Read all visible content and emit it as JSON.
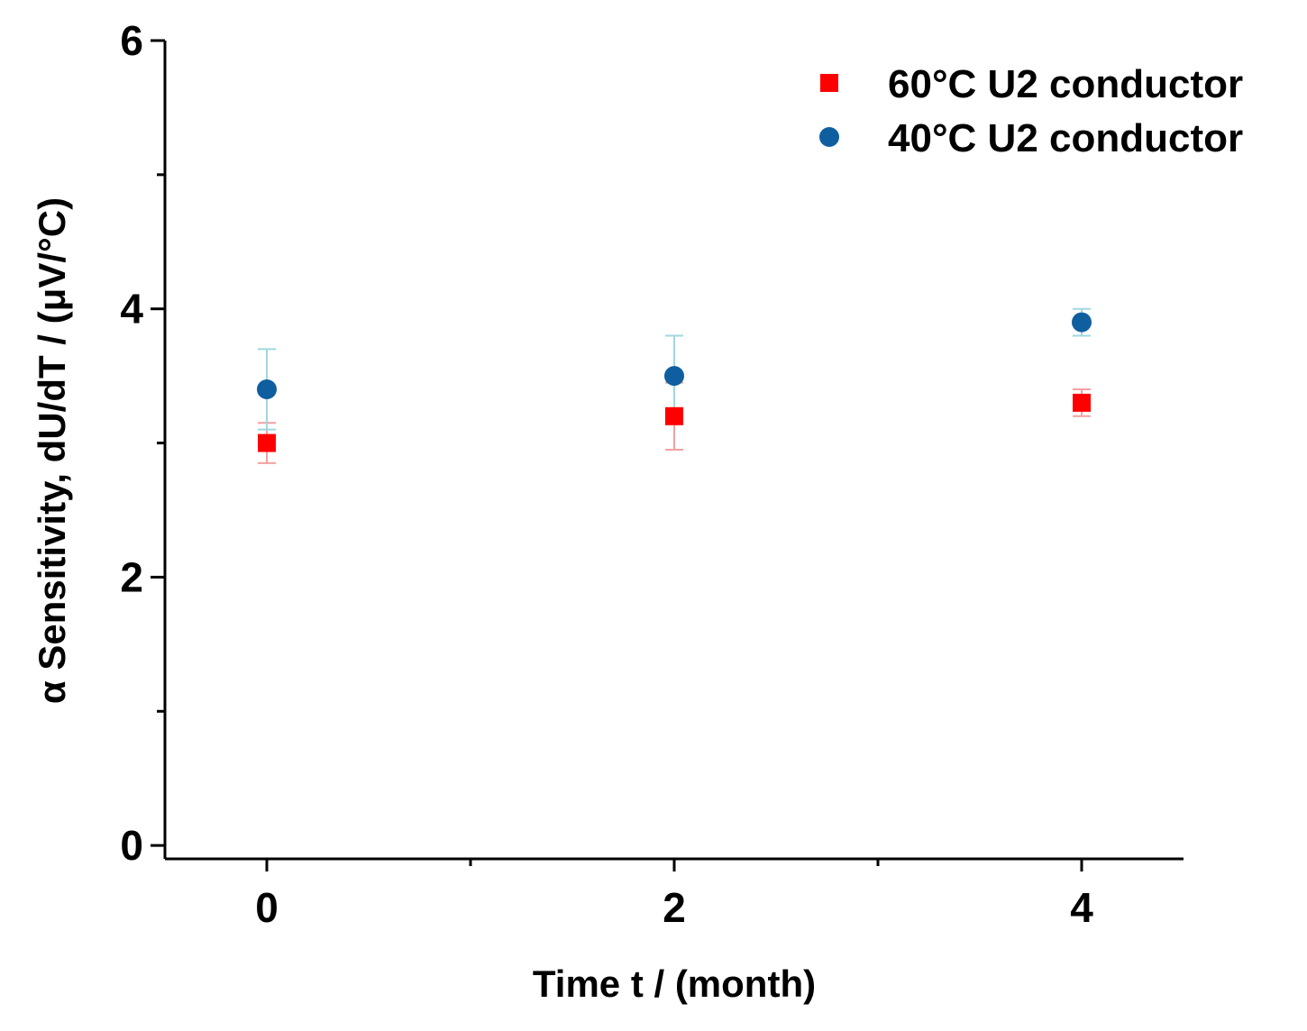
{
  "chart_data": {
    "type": "scatter",
    "title": "",
    "xlabel": "Time t / (month)",
    "ylabel": "α Sensitivity, dU/dT / (μV/°C)",
    "xlim": [
      -0.5,
      4.5
    ],
    "ylim": [
      -0.1,
      6
    ],
    "x_ticks": [
      0,
      2,
      4
    ],
    "x_minor_ticks": [
      1,
      3
    ],
    "y_ticks": [
      0,
      2,
      4,
      6
    ],
    "y_minor_ticks": [
      1,
      3,
      5
    ],
    "grid": false,
    "legend_position": "top-right",
    "series": [
      {
        "name": "60°C U2 conductor",
        "marker": "square",
        "color": "#ff0000",
        "errorbar_color": "#f4a0a0",
        "x": [
          0,
          2,
          4
        ],
        "y": [
          3.0,
          3.2,
          3.3
        ],
        "yerr": [
          0.15,
          0.25,
          0.1
        ]
      },
      {
        "name": "40°C U2 conductor",
        "marker": "circle",
        "color": "#0f5fa0",
        "errorbar_color": "#9fd8de",
        "x": [
          0,
          2,
          4
        ],
        "y": [
          3.4,
          3.5,
          3.9
        ],
        "yerr": [
          0.3,
          0.3,
          0.1
        ]
      }
    ]
  }
}
